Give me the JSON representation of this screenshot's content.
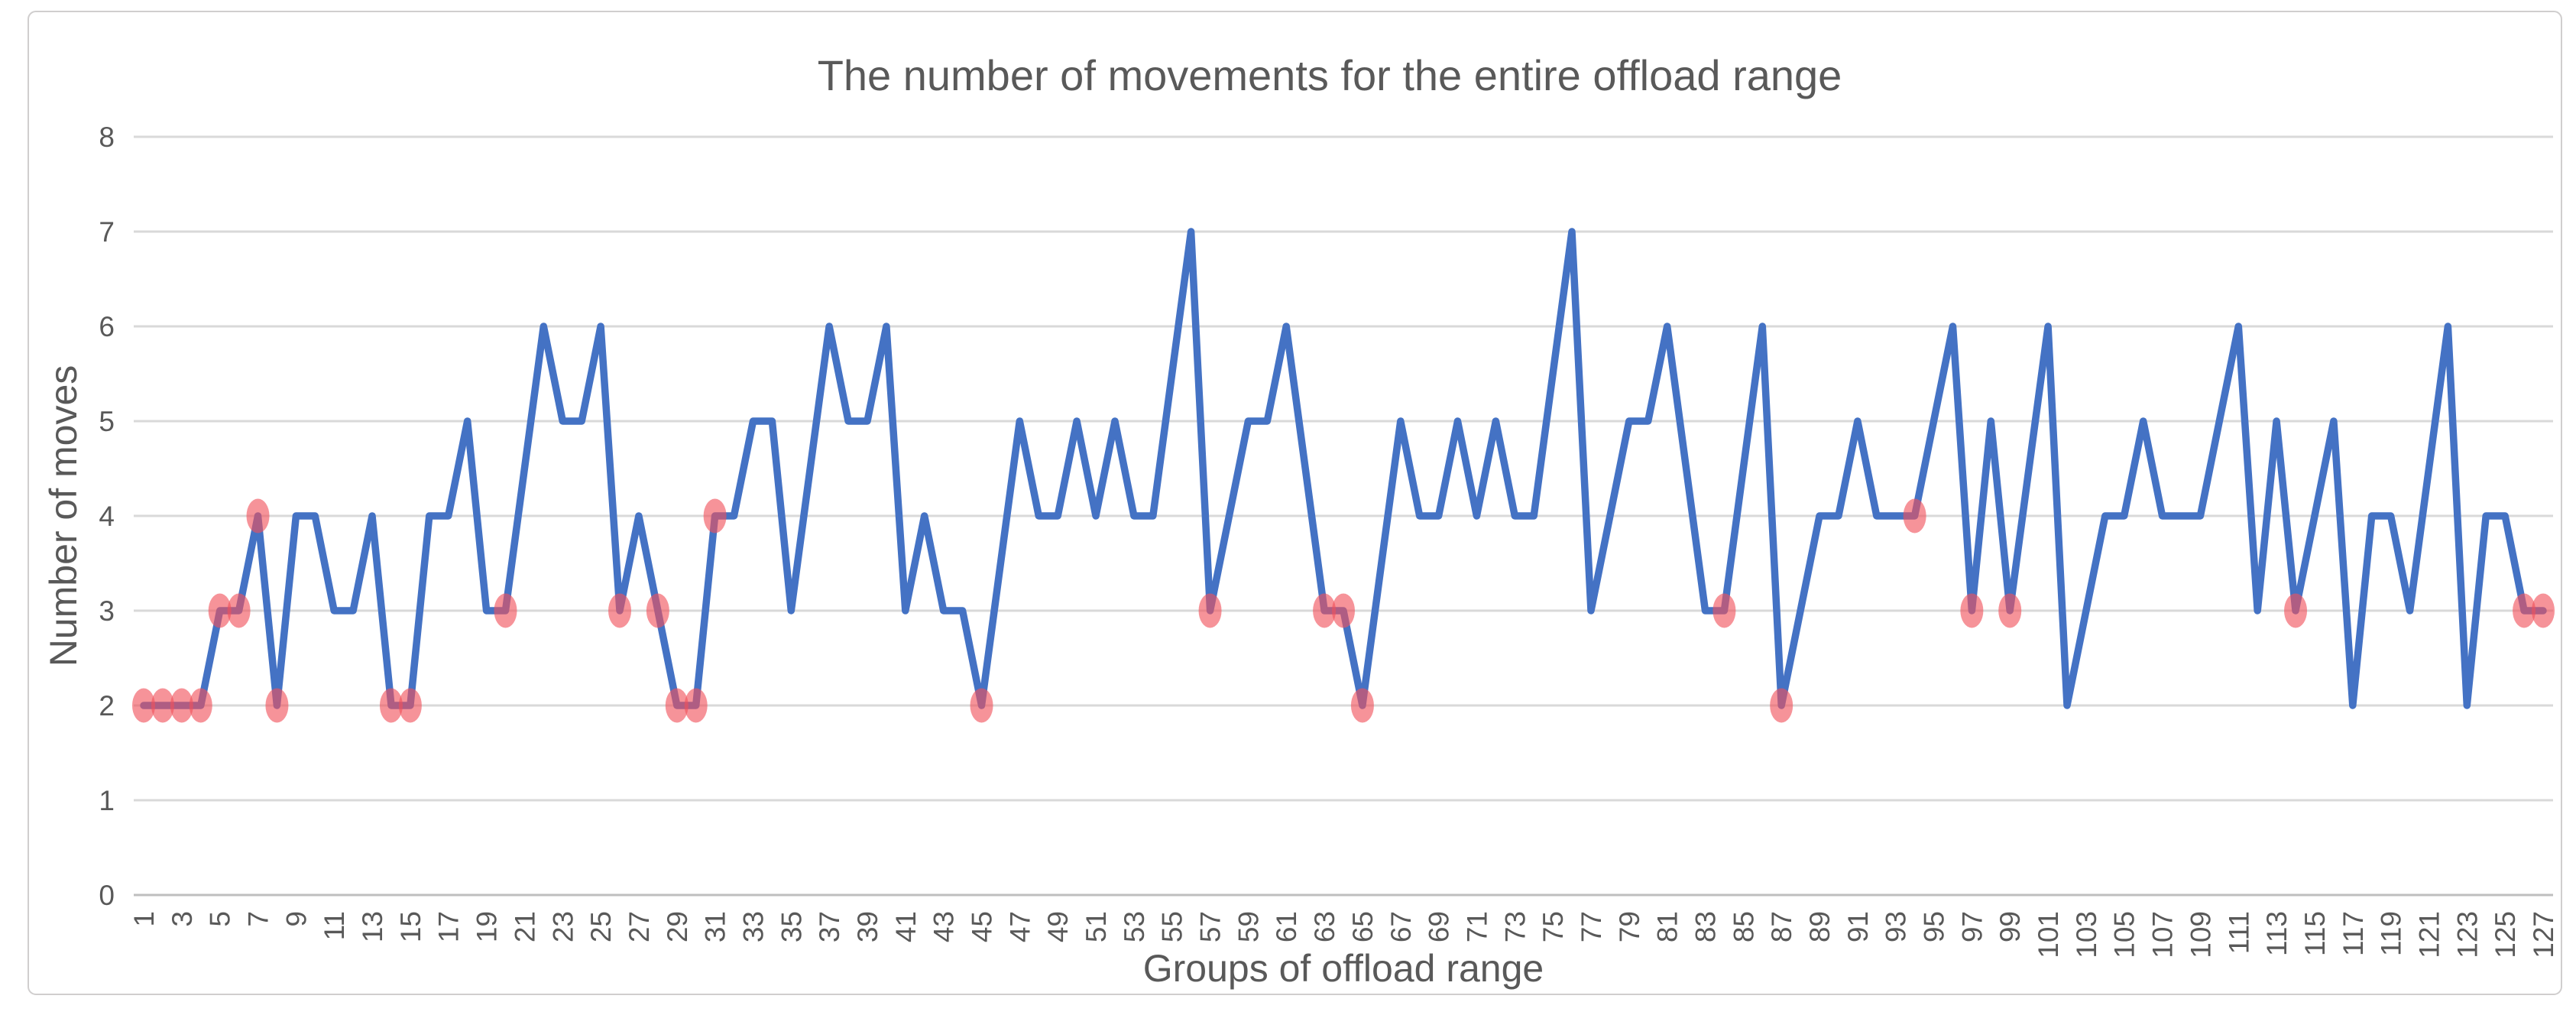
{
  "chart_data": {
    "type": "line",
    "title": "The number of movements for the entire offload range",
    "xlabel": "Groups of offload range",
    "ylabel": "Number of moves",
    "ylim": [
      0,
      8
    ],
    "y_ticks": [
      0,
      1,
      2,
      3,
      4,
      5,
      6,
      7,
      8
    ],
    "x_start": 1,
    "x_end": 127,
    "x_tick_labels": [
      1,
      3,
      5,
      7,
      9,
      11,
      13,
      15,
      17,
      19,
      21,
      23,
      25,
      27,
      29,
      31,
      33,
      35,
      37,
      39,
      41,
      43,
      45,
      47,
      49,
      51,
      53,
      55,
      57,
      59,
      61,
      63,
      65,
      67,
      69,
      71,
      73,
      75,
      77,
      79,
      81,
      83,
      85,
      87,
      89,
      91,
      93,
      95,
      97,
      99,
      101,
      103,
      105,
      107,
      109,
      111,
      113,
      115,
      117,
      119,
      121,
      123,
      125,
      127
    ],
    "grid": "horizontal",
    "legend": "none",
    "series": [
      {
        "name": "Number of moves",
        "values": [
          2,
          2,
          2,
          2,
          3,
          3,
          4,
          2,
          4,
          4,
          3,
          3,
          4,
          2,
          2,
          4,
          4,
          5,
          3,
          3,
          4.5,
          6,
          5,
          5,
          6,
          3,
          4,
          3,
          2,
          2,
          4,
          4,
          5,
          5,
          3,
          4.5,
          6,
          5,
          5,
          6,
          3,
          4,
          3,
          3,
          2,
          3.5,
          5,
          4,
          4,
          5,
          4,
          5,
          4,
          4,
          5.5,
          7,
          3,
          4,
          5,
          5,
          6,
          4.5,
          3,
          3,
          2,
          3.5,
          5,
          4,
          4,
          5,
          4,
          5,
          4,
          4,
          5.5,
          7,
          3,
          4,
          5,
          5,
          6,
          4.5,
          3,
          3,
          4.5,
          6,
          2,
          3,
          4,
          4,
          5,
          4,
          4,
          4,
          5,
          6,
          3,
          5,
          3,
          4.5,
          6,
          2,
          3,
          4,
          4,
          5,
          4,
          4,
          4,
          5,
          6,
          3,
          5,
          3,
          4,
          5,
          2,
          4,
          4,
          3,
          4.5,
          6,
          2,
          4,
          4,
          3,
          3
        ]
      }
    ],
    "highlight_marker_points": [
      1,
      2,
      3,
      4,
      5,
      6,
      7,
      8,
      14,
      15,
      20,
      26,
      28,
      29,
      30,
      31,
      45,
      57,
      63,
      64,
      65,
      84,
      87,
      94,
      97,
      99,
      114,
      126,
      127
    ],
    "colors": {
      "line": "#4472C4",
      "marker_fill": "rgba(240,80,90,0.62)",
      "gridline": "#D9D9D9",
      "axis_line": "#BFBFBF",
      "text": "#595959",
      "border": "#D0CECE",
      "background": "#FFFFFF"
    }
  }
}
